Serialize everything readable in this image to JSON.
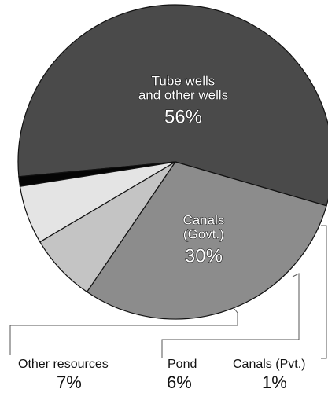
{
  "chart_data": {
    "type": "pie",
    "title": "",
    "slices": [
      {
        "label": "Tube wells and other wells",
        "label_lines": [
          "Tube wells",
          "and other wells"
        ],
        "value": 56,
        "value_label": "56%",
        "color": "#4a4a4a",
        "label_position": "inside"
      },
      {
        "label": "Canals (Pvt.)",
        "value": 1,
        "value_label": "1%",
        "color": "#050505",
        "label_position": "outside"
      },
      {
        "label": "Pond",
        "value": 6,
        "value_label": "6%",
        "color": "#e4e4e4",
        "label_position": "outside"
      },
      {
        "label": "Other resources",
        "value": 7,
        "value_label": "7%",
        "color": "#c4c4c4",
        "label_position": "outside"
      },
      {
        "label": "Canals (Govt.)",
        "label_lines": [
          "Canals",
          "(Govt.)"
        ],
        "value": 30,
        "value_label": "30%",
        "color": "#8c8c8c",
        "label_position": "inside"
      }
    ]
  }
}
